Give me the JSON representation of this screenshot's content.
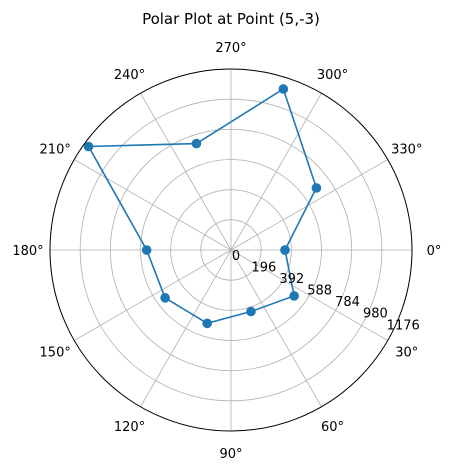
{
  "chart_data": {
    "type": "line",
    "projection": "polar",
    "title": "Polar Plot at Point (5,-3)",
    "angular_direction": "clockwise",
    "theta_zero_location": "E",
    "angle_ticks_deg": [
      0,
      30,
      60,
      90,
      120,
      150,
      180,
      210,
      240,
      270,
      300,
      330
    ],
    "angle_tick_labels": [
      "0°",
      "30°",
      "60°",
      "90°",
      "120°",
      "150°",
      "180°",
      "210°",
      "240°",
      "270°",
      "300°",
      "330°"
    ],
    "radial_ticks": [
      0,
      196,
      392,
      588,
      784,
      980,
      1176
    ],
    "radial_tick_labels": [
      "0",
      "196",
      "392",
      "588",
      "784",
      "980",
      "1176"
    ],
    "rlim": [
      0,
      1176
    ],
    "grid": true,
    "series": [
      {
        "color": "#1f77b4",
        "marker": "circle",
        "theta_deg": [
          0,
          36,
          72,
          108,
          144,
          180,
          216,
          252,
          288,
          324,
          0
        ],
        "r": [
          351,
          507,
          420,
          501,
          529,
          548,
          1144,
          727,
          1100,
          686,
          351
        ]
      }
    ]
  }
}
